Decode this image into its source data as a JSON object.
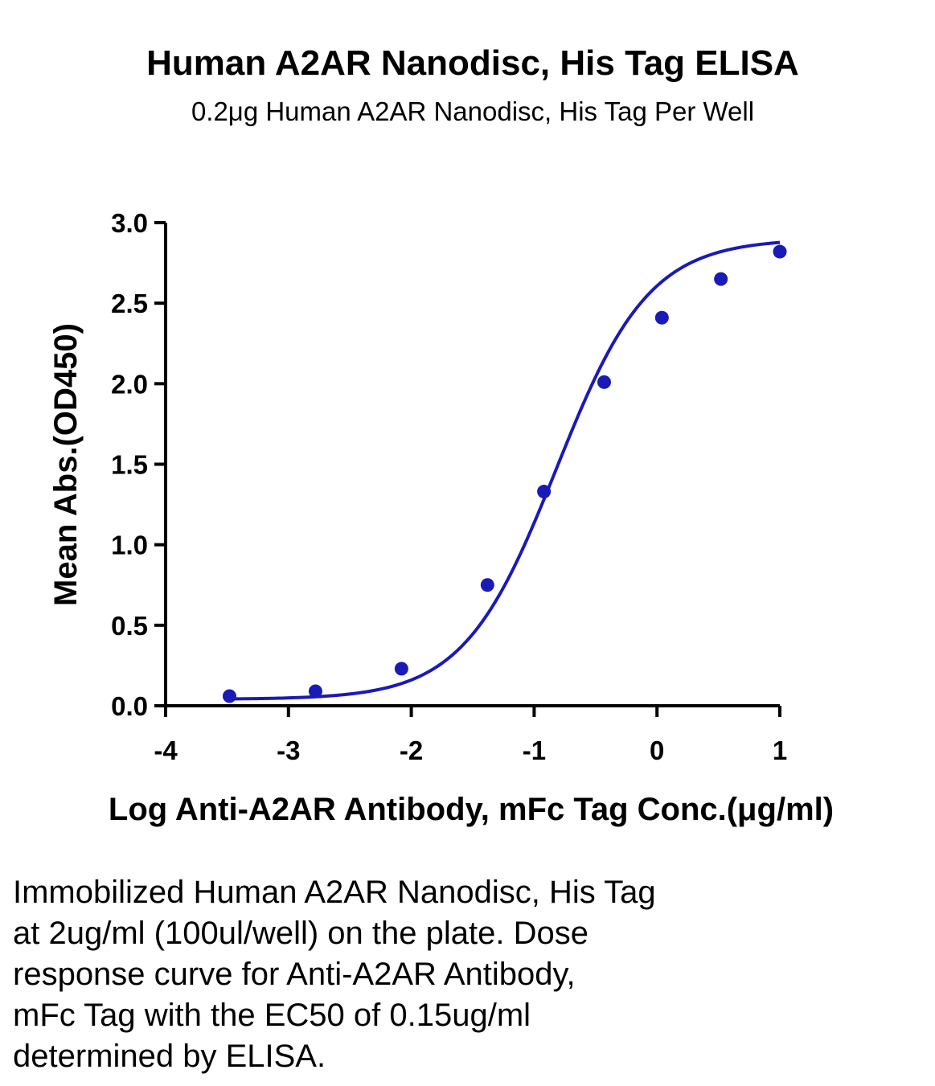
{
  "chart_data": {
    "type": "scatter",
    "title": "Human A2AR Nanodisc, His Tag ELISA",
    "subtitle": "0.2μg Human A2AR Nanodisc, His Tag Per Well",
    "xlabel": "Log Anti-A2AR Antibody, mFc Tag Conc.(μg/ml)",
    "ylabel": "Mean Abs.(OD450)",
    "xlim": [
      -4,
      1
    ],
    "ylim": [
      0,
      3
    ],
    "xticks": [
      -4,
      -3,
      -2,
      -1,
      0,
      1
    ],
    "xtick_labels": [
      "-4",
      "-3",
      "-2",
      "-1",
      "0",
      "1"
    ],
    "yticks": [
      0,
      0.5,
      1,
      1.5,
      2,
      2.5,
      3
    ],
    "ytick_labels": [
      "0.0",
      "0.5",
      "1.0",
      "1.5",
      "2.0",
      "2.5",
      "3.0"
    ],
    "grid": false,
    "series": [
      {
        "x": [
          -3.48,
          -2.78,
          -2.08,
          -1.38,
          -0.92,
          -0.43,
          0.04,
          0.52,
          1.0
        ],
        "y": [
          0.06,
          0.09,
          0.23,
          0.75,
          1.33,
          2.01,
          2.41,
          2.65,
          2.82
        ],
        "color": "#1a1ab8",
        "fit": "4PL",
        "fit_params": {
          "bottom": 0.04,
          "top": 2.9,
          "logEC50": -0.82,
          "hill": 1.15
        }
      }
    ]
  },
  "caption": {
    "lines": [
      "Immobilized Human A2AR Nanodisc, His Tag",
      "at 2ug/ml (100ul/well) on the plate. Dose",
      "response curve for Anti-A2AR Antibody,",
      "mFc Tag with the EC50 of 0.15ug/ml",
      "determined by ELISA."
    ]
  }
}
